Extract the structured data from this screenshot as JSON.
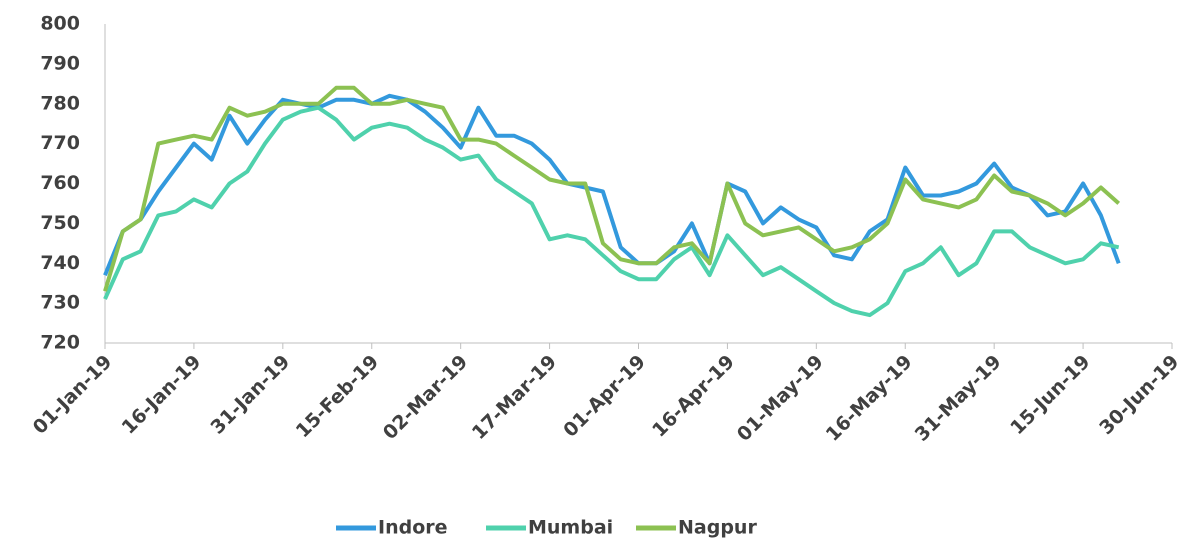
{
  "chart_data": {
    "type": "line",
    "x": [
      "2019-01-01",
      "2019-01-04",
      "2019-01-07",
      "2019-01-10",
      "2019-01-13",
      "2019-01-16",
      "2019-01-19",
      "2019-01-22",
      "2019-01-25",
      "2019-01-28",
      "2019-01-31",
      "2019-02-03",
      "2019-02-06",
      "2019-02-09",
      "2019-02-12",
      "2019-02-15",
      "2019-02-18",
      "2019-02-21",
      "2019-02-24",
      "2019-02-27",
      "2019-03-02",
      "2019-03-05",
      "2019-03-08",
      "2019-03-11",
      "2019-03-14",
      "2019-03-17",
      "2019-03-20",
      "2019-03-23",
      "2019-03-26",
      "2019-03-29",
      "2019-04-01",
      "2019-04-04",
      "2019-04-07",
      "2019-04-10",
      "2019-04-13",
      "2019-04-16",
      "2019-04-19",
      "2019-04-22",
      "2019-04-25",
      "2019-04-28",
      "2019-05-01",
      "2019-05-04",
      "2019-05-07",
      "2019-05-10",
      "2019-05-13",
      "2019-05-16",
      "2019-05-19",
      "2019-05-22",
      "2019-05-25",
      "2019-05-28",
      "2019-05-31",
      "2019-06-03",
      "2019-06-06",
      "2019-06-09",
      "2019-06-12",
      "2019-06-15",
      "2019-06-18",
      "2019-06-21"
    ],
    "series": [
      {
        "name": "Indore",
        "color": "#3399dd",
        "values": [
          737,
          748,
          751,
          758,
          764,
          770,
          766,
          777,
          770,
          776,
          781,
          780,
          779,
          781,
          781,
          780,
          782,
          781,
          778,
          774,
          769,
          779,
          772,
          772,
          770,
          766,
          760,
          759,
          758,
          744,
          740,
          740,
          743,
          750,
          740,
          760,
          758,
          750,
          754,
          751,
          749,
          742,
          741,
          748,
          751,
          764,
          757,
          757,
          758,
          760,
          765,
          759,
          757,
          752,
          753,
          760,
          752,
          740
        ]
      },
      {
        "name": "Mumbai",
        "color": "#4fd1ac",
        "values": [
          731,
          741,
          743,
          752,
          753,
          756,
          754,
          760,
          763,
          770,
          776,
          778,
          779,
          776,
          771,
          774,
          775,
          774,
          771,
          769,
          766,
          767,
          761,
          758,
          755,
          746,
          747,
          746,
          742,
          738,
          736,
          736,
          741,
          744,
          737,
          747,
          742,
          737,
          739,
          736,
          733,
          730,
          728,
          727,
          730,
          738,
          740,
          744,
          737,
          740,
          748,
          748,
          744,
          742,
          740,
          741,
          745,
          744
        ]
      },
      {
        "name": "Nagpur",
        "color": "#8cc152",
        "values": [
          733,
          748,
          751,
          770,
          771,
          772,
          771,
          779,
          777,
          778,
          780,
          780,
          780,
          784,
          784,
          780,
          780,
          781,
          780,
          779,
          771,
          771,
          770,
          767,
          764,
          761,
          760,
          760,
          745,
          741,
          740,
          740,
          744,
          745,
          740,
          760,
          750,
          747,
          748,
          749,
          746,
          743,
          744,
          746,
          750,
          761,
          756,
          755,
          754,
          756,
          762,
          758,
          757,
          755,
          752,
          755,
          759,
          755
        ]
      }
    ],
    "xlim": [
      "2019-01-01",
      "2019-06-30"
    ],
    "xticks": [
      {
        "value": "2019-01-01",
        "label": "01-Jan-19"
      },
      {
        "value": "2019-01-16",
        "label": "16-Jan-19"
      },
      {
        "value": "2019-01-31",
        "label": "31-Jan-19"
      },
      {
        "value": "2019-02-15",
        "label": "15-Feb-19"
      },
      {
        "value": "2019-03-02",
        "label": "02-Mar-19"
      },
      {
        "value": "2019-03-17",
        "label": "17-Mar-19"
      },
      {
        "value": "2019-04-01",
        "label": "01-Apr-19"
      },
      {
        "value": "2019-04-16",
        "label": "16-Apr-19"
      },
      {
        "value": "2019-05-01",
        "label": "01-May-19"
      },
      {
        "value": "2019-05-16",
        "label": "16-May-19"
      },
      {
        "value": "2019-05-31",
        "label": "31-May-19"
      },
      {
        "value": "2019-06-15",
        "label": "15-Jun-19"
      },
      {
        "value": "2019-06-30",
        "label": "30-Jun-19"
      }
    ],
    "ylim": [
      720,
      800
    ],
    "yticks": [
      720,
      730,
      740,
      750,
      760,
      770,
      780,
      790,
      800
    ],
    "grid": false,
    "legend": "bottom"
  }
}
